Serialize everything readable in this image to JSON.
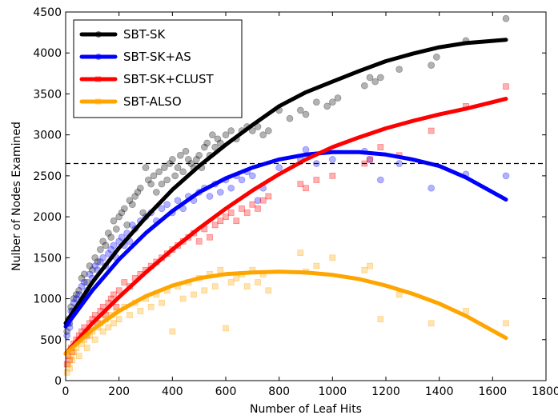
{
  "chart_data": {
    "type": "scatter",
    "xlabel": "Number of Leaf Hits",
    "ylabel": "Nulber of Nodes Examined",
    "xlim": [
      0,
      1800
    ],
    "ylim": [
      0,
      4500
    ],
    "x_ticks": [
      0,
      200,
      400,
      600,
      800,
      1000,
      1200,
      1400,
      1600,
      1800
    ],
    "y_ticks": [
      0,
      500,
      1000,
      1500,
      2000,
      2500,
      3000,
      3500,
      4000,
      4500
    ],
    "grid": false,
    "legend_position": "top-left",
    "reference_line": {
      "y": 2650,
      "style": "dashed",
      "color": "#000000"
    },
    "series": [
      {
        "name": "SBT-SK",
        "color": "#000000",
        "marker": "circle",
        "fit": {
          "x": [
            0,
            100,
            200,
            300,
            400,
            500,
            600,
            700,
            800,
            900,
            1000,
            1100,
            1200,
            1300,
            1400,
            1500,
            1650
          ],
          "y": [
            700,
            1200,
            1620,
            1990,
            2330,
            2620,
            2880,
            3120,
            3350,
            3520,
            3650,
            3780,
            3900,
            3990,
            4070,
            4120,
            4160
          ]
        },
        "points": {
          "x": [
            5,
            10,
            15,
            20,
            25,
            30,
            40,
            50,
            60,
            70,
            80,
            90,
            100,
            110,
            120,
            130,
            140,
            150,
            160,
            170,
            180,
            190,
            200,
            210,
            220,
            230,
            240,
            250,
            260,
            270,
            280,
            290,
            300,
            310,
            320,
            330,
            340,
            350,
            360,
            370,
            380,
            390,
            400,
            410,
            420,
            430,
            440,
            450,
            460,
            470,
            480,
            490,
            500,
            510,
            520,
            530,
            540,
            550,
            560,
            570,
            580,
            600,
            620,
            640,
            660,
            680,
            700,
            720,
            740,
            760,
            800,
            840,
            880,
            900,
            940,
            980,
            1000,
            1020,
            1120,
            1140,
            1160,
            1180,
            1250,
            1370,
            1390,
            1500,
            1650
          ],
          "y": [
            600,
            750,
            700,
            900,
            850,
            1000,
            1050,
            1100,
            1250,
            1300,
            1200,
            1400,
            1350,
            1500,
            1450,
            1600,
            1700,
            1650,
            1800,
            1750,
            1950,
            1850,
            2000,
            2050,
            2100,
            1900,
            2200,
            2150,
            2250,
            2300,
            2350,
            2050,
            2600,
            2450,
            2400,
            2500,
            2300,
            2550,
            2400,
            2600,
            2450,
            2650,
            2700,
            2500,
            2600,
            2750,
            2550,
            2800,
            2700,
            2650,
            2600,
            2700,
            2750,
            2600,
            2850,
            2900,
            2750,
            3000,
            2850,
            2950,
            2900,
            3000,
            3050,
            2950,
            3050,
            3100,
            3050,
            3100,
            3000,
            3050,
            3300,
            3200,
            3300,
            3250,
            3400,
            3350,
            3400,
            3450,
            3600,
            3700,
            3650,
            3700,
            3800,
            3850,
            3950,
            4150,
            4420
          ]
        }
      },
      {
        "name": "SBT-SK+AS",
        "color": "#0000ff",
        "marker": "circle",
        "fit": {
          "x": [
            0,
            100,
            200,
            300,
            400,
            500,
            600,
            700,
            800,
            900,
            1000,
            1100,
            1200,
            1300,
            1400,
            1500,
            1650
          ],
          "y": [
            660,
            1100,
            1480,
            1800,
            2070,
            2300,
            2470,
            2600,
            2700,
            2760,
            2790,
            2790,
            2760,
            2700,
            2620,
            2480,
            2210
          ]
        },
        "points": {
          "x": [
            5,
            10,
            15,
            20,
            25,
            30,
            40,
            50,
            60,
            70,
            80,
            90,
            100,
            110,
            120,
            130,
            140,
            150,
            160,
            170,
            180,
            190,
            200,
            210,
            220,
            230,
            240,
            250,
            260,
            280,
            300,
            320,
            340,
            360,
            380,
            400,
            420,
            440,
            460,
            480,
            500,
            520,
            540,
            560,
            580,
            600,
            620,
            640,
            660,
            680,
            700,
            720,
            740,
            800,
            880,
            900,
            940,
            1000,
            1120,
            1140,
            1180,
            1250,
            1370,
            1500,
            1650
          ],
          "y": [
            550,
            700,
            650,
            850,
            800,
            950,
            1000,
            1050,
            1150,
            1200,
            1100,
            1300,
            1250,
            1400,
            1350,
            1450,
            1500,
            1400,
            1550,
            1600,
            1650,
            1500,
            1700,
            1750,
            1650,
            1800,
            1700,
            1900,
            1850,
            1950,
            2000,
            2050,
            1950,
            2100,
            2150,
            2050,
            2200,
            2100,
            2250,
            2200,
            2300,
            2350,
            2250,
            2400,
            2300,
            2450,
            2350,
            2500,
            2450,
            2550,
            2500,
            2200,
            2350,
            2600,
            2700,
            2820,
            2650,
            2700,
            2800,
            2700,
            2450,
            2650,
            2350,
            2520,
            2500
          ]
        }
      },
      {
        "name": "SBT-SK+CLUST",
        "color": "#ff0000",
        "marker": "square",
        "fit": {
          "x": [
            0,
            100,
            200,
            300,
            400,
            500,
            600,
            700,
            800,
            900,
            1000,
            1100,
            1200,
            1300,
            1400,
            1500,
            1650
          ],
          "y": [
            330,
            700,
            1020,
            1320,
            1600,
            1860,
            2100,
            2320,
            2520,
            2700,
            2850,
            2970,
            3080,
            3170,
            3250,
            3320,
            3440
          ]
        },
        "points": {
          "x": [
            5,
            10,
            15,
            20,
            25,
            30,
            40,
            50,
            60,
            70,
            80,
            90,
            100,
            110,
            120,
            130,
            140,
            150,
            160,
            170,
            180,
            190,
            200,
            220,
            240,
            260,
            280,
            300,
            320,
            340,
            360,
            380,
            400,
            420,
            440,
            460,
            480,
            500,
            520,
            540,
            560,
            580,
            600,
            620,
            640,
            660,
            680,
            700,
            720,
            740,
            760,
            880,
            900,
            940,
            1000,
            1120,
            1140,
            1180,
            1250,
            1370,
            1500,
            1650
          ],
          "y": [
            200,
            300,
            250,
            400,
            350,
            450,
            500,
            550,
            600,
            650,
            550,
            700,
            750,
            800,
            700,
            850,
            900,
            800,
            950,
            1000,
            1050,
            900,
            1100,
            1200,
            1150,
            1250,
            1300,
            1350,
            1400,
            1450,
            1500,
            1550,
            1600,
            1650,
            1700,
            1750,
            1800,
            1700,
            1850,
            1750,
            1900,
            1950,
            2000,
            2050,
            1950,
            2100,
            2050,
            2150,
            2100,
            2200,
            2250,
            2400,
            2350,
            2450,
            2500,
            2650,
            2700,
            2850,
            2750,
            3050,
            3350,
            3590
          ]
        }
      },
      {
        "name": "SBT-ALSO",
        "color": "#ffa500",
        "marker": "square",
        "fit": {
          "x": [
            0,
            100,
            200,
            300,
            400,
            500,
            600,
            700,
            800,
            900,
            1000,
            1100,
            1200,
            1300,
            1400,
            1500,
            1650
          ],
          "y": [
            330,
            620,
            850,
            1030,
            1160,
            1250,
            1300,
            1320,
            1330,
            1320,
            1290,
            1240,
            1160,
            1060,
            940,
            790,
            520
          ]
        },
        "points": {
          "x": [
            5,
            10,
            15,
            20,
            25,
            30,
            40,
            50,
            60,
            70,
            80,
            90,
            100,
            110,
            120,
            130,
            140,
            150,
            160,
            170,
            180,
            190,
            200,
            220,
            240,
            260,
            280,
            300,
            320,
            340,
            360,
            380,
            400,
            420,
            440,
            460,
            480,
            500,
            520,
            540,
            560,
            580,
            600,
            620,
            640,
            660,
            680,
            700,
            720,
            740,
            760,
            880,
            900,
            940,
            1000,
            1120,
            1140,
            1180,
            1250,
            1370,
            1500,
            1650
          ],
          "y": [
            100,
            200,
            150,
            300,
            250,
            350,
            400,
            300,
            450,
            500,
            400,
            550,
            600,
            500,
            650,
            700,
            600,
            750,
            650,
            800,
            700,
            850,
            750,
            900,
            800,
            950,
            850,
            1000,
            900,
            1050,
            950,
            1100,
            600,
            1150,
            1000,
            1200,
            1050,
            1250,
            1100,
            1300,
            1150,
            1350,
            640,
            1200,
            1250,
            1300,
            1150,
            1350,
            1200,
            1300,
            1100,
            1560,
            1330,
            1400,
            1500,
            1350,
            1400,
            750,
            1050,
            700,
            850,
            700
          ]
        }
      }
    ]
  }
}
